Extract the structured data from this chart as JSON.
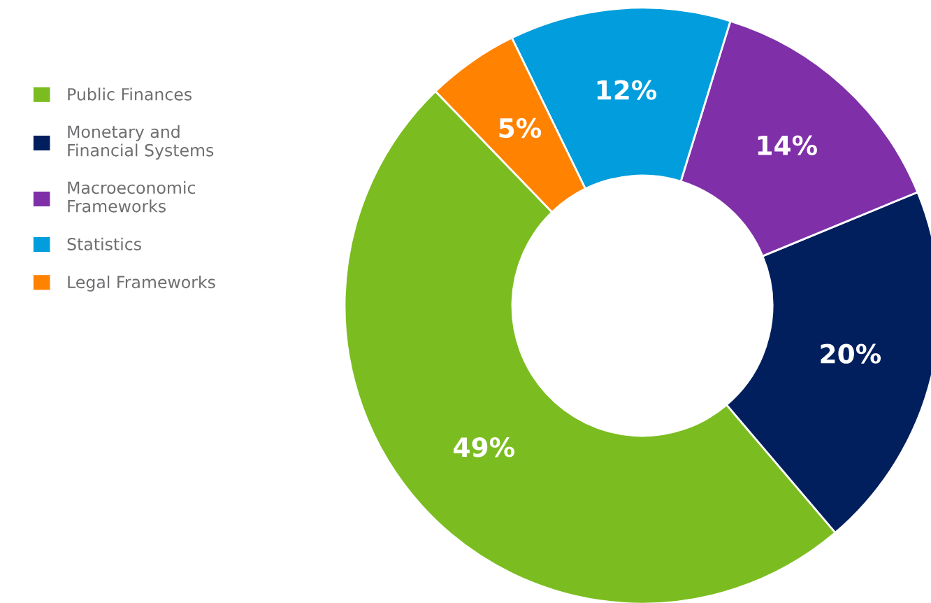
{
  "chart_data": {
    "type": "donut",
    "categories": [
      "Public Finances",
      "Monetary and\nFinancial Systems",
      "Macroeconomic\nFrameworks",
      "Statistics",
      "Legal Frameworks"
    ],
    "values": [
      49,
      20,
      14,
      12,
      5
    ],
    "colors": [
      "#7bbd20",
      "#021f5d",
      "#7f30a8",
      "#029ddc",
      "#ff8200"
    ],
    "value_labels": [
      "49%",
      "20%",
      "14%",
      "12%",
      "5%"
    ],
    "legend": "left"
  }
}
